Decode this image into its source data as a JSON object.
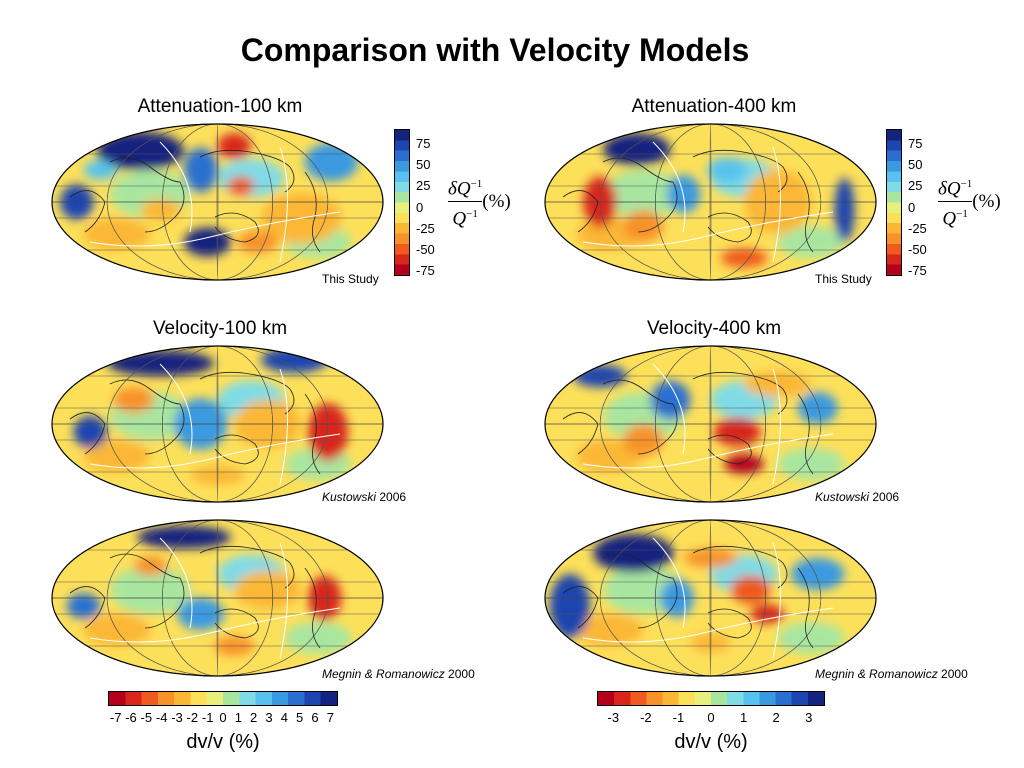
{
  "slide": {
    "title": "Comparison with Velocity Models"
  },
  "panels": [
    {
      "title": "Attenuation-100 km",
      "credit": "This Study",
      "credit_italic": "",
      "map": "atten100"
    },
    {
      "title": "Attenuation-400 km",
      "credit": "This Study",
      "credit_italic": "",
      "map": "atten400"
    },
    {
      "title": "Velocity-100 km",
      "credit": " 2006",
      "credit_italic": "Kustowski",
      "map": "vel100k"
    },
    {
      "title": "Velocity-400 km",
      "credit": " 2006",
      "credit_italic": "Kustowski",
      "map": "vel400k"
    },
    {
      "title": "",
      "credit": " 2000",
      "credit_italic": "Megnin & Romanowicz",
      "map": "vel100m"
    },
    {
      "title": "",
      "credit": " 2000",
      "credit_italic": "Megnin & Romanowicz",
      "map": "vel400m"
    }
  ],
  "q_colorbar": {
    "ticks": [
      "75",
      "50",
      "25",
      "0",
      "-25",
      "-50",
      "-75"
    ],
    "equation_numerator": "δQ",
    "equation_denominator": "Q",
    "exponent": "−1",
    "unit": "(%)"
  },
  "vel_colorbar_left": {
    "ticks": [
      "-7",
      "-6",
      "-5",
      "-4",
      "-3",
      "-2",
      "-1",
      "0",
      "1",
      "2",
      "3",
      "4",
      "5",
      "6",
      "7"
    ],
    "label": "dv/v (%)"
  },
  "vel_colorbar_right": {
    "ticks": [
      "-3",
      "-2",
      "-1",
      "0",
      "1",
      "2",
      "3"
    ],
    "label": "dv/v (%)"
  },
  "colors": {
    "palette": [
      "#b3001b",
      "#d8261a",
      "#ef5a1e",
      "#f7922a",
      "#fbb734",
      "#fde05a",
      "#e6f07a",
      "#a8e6a0",
      "#7fdbe6",
      "#58c2ee",
      "#3a9ae0",
      "#2a6fd0",
      "#1d45b0",
      "#13237f"
    ]
  }
}
